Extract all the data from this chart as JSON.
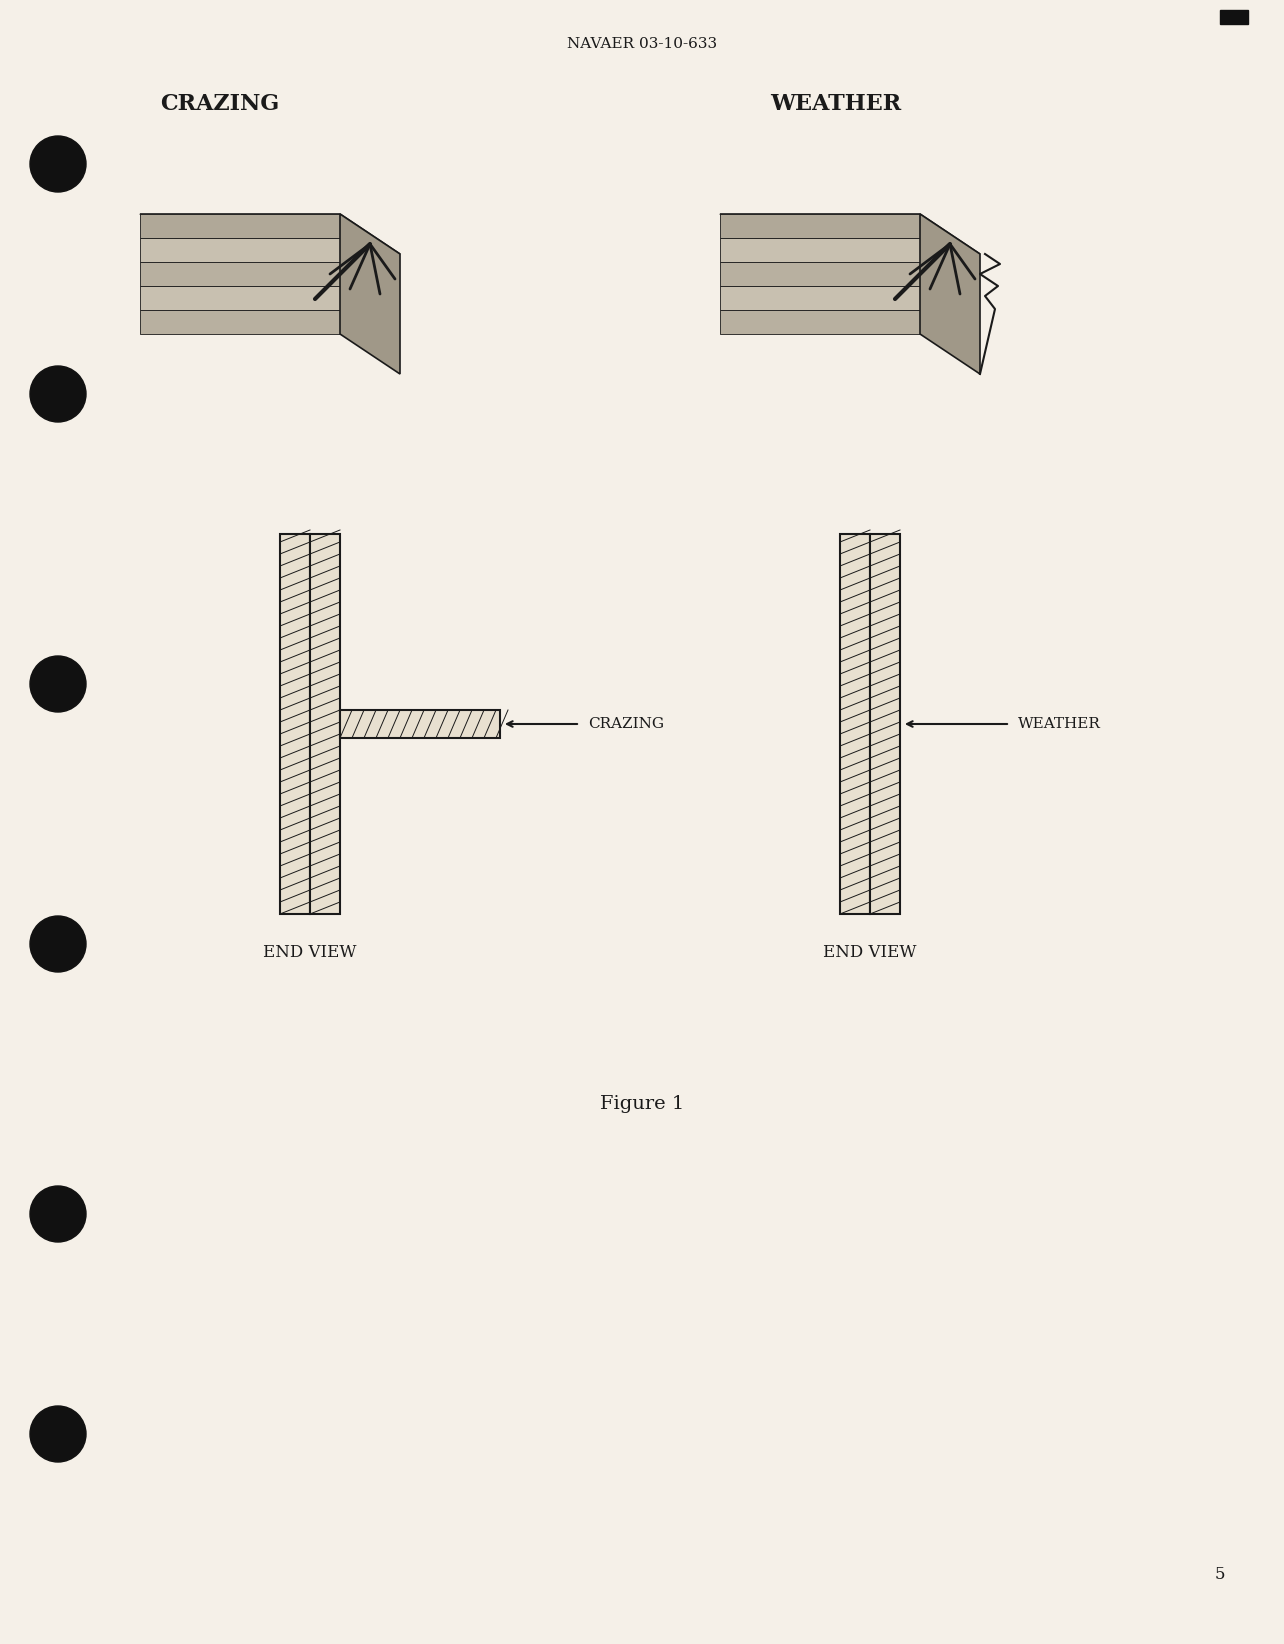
{
  "page_bg": "#f5f0e8",
  "header_text": "NAVAER 03-10-633",
  "figure_caption": "Figure 1",
  "page_number": "5",
  "top_left_label": "CRAZING",
  "top_right_label": "WEATHER",
  "bottom_left_label": "CRAZING",
  "bottom_right_label": "WEATHER",
  "end_view_left": "END VIEW",
  "end_view_right": "END VIEW",
  "font_color": "#1a1a1a",
  "line_color": "#1a1a1a",
  "hatch_color": "#1a1a1a",
  "dot_color": "#111111"
}
